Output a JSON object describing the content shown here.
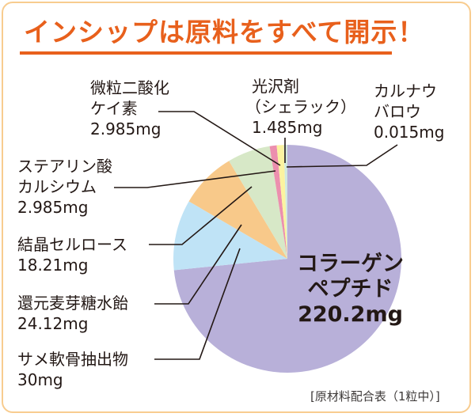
{
  "title": "インシップは原料をすべて開示！",
  "footnote": "[原材料配合表（1粒中）]",
  "chart_data": {
    "type": "pie",
    "title": "インシップは原料をすべて開示！",
    "subtitle": "[原材料配合表（1粒中）]",
    "unit": "mg",
    "start_angle_deg": 0,
    "direction": "clockwise",
    "center": [
      363,
      327
    ],
    "radius": 144,
    "slices": [
      {
        "name": "コラーゲンペプチド",
        "value": 220.2,
        "label": "220.2mg",
        "color": "#b8b0d9"
      },
      {
        "name": "サメ軟骨抽出物",
        "value": 30,
        "label": "30mg",
        "color": "#bfe3f6"
      },
      {
        "name": "還元麦芽糖水飴",
        "value": 24.12,
        "label": "24.12mg",
        "color": "#f8c98a"
      },
      {
        "name": "結晶セルロース",
        "value": 18.21,
        "label": "18.21mg",
        "color": "#d7e8c7"
      },
      {
        "name": "ステアリン酸カルシウム",
        "value": 2.985,
        "label": "2.985mg",
        "color": "#ec8fae"
      },
      {
        "name": "微粒二酸化ケイ素",
        "value": 2.985,
        "label": "2.985mg",
        "color": "#fbf3a0"
      },
      {
        "name": "光沢剤（シェラック）",
        "value": 1.485,
        "label": "1.485mg",
        "color": "#cfe9e0"
      },
      {
        "name": "カルナウバロウ",
        "value": 0.015,
        "label": "0.015mg",
        "color": "#e3b98a"
      }
    ]
  },
  "labels": {
    "silica": {
      "line1": "微粒二酸化",
      "line2": "ケイ素",
      "value": "2.985mg"
    },
    "shellac": {
      "line1": "光沢剤",
      "line2": "（シェラック）",
      "value": "1.485mg"
    },
    "carnauba": {
      "line1": "カルナウ",
      "line2": "バロウ",
      "value": "0.015mg"
    },
    "stearate": {
      "line1": "ステアリン酸",
      "line2": "カルシウム",
      "value": "2.985mg"
    },
    "cellulose": {
      "line1": "結晶セルロース",
      "value": "18.21mg"
    },
    "maltose": {
      "line1": "還元麦芽糖水飴",
      "value": "24.12mg"
    },
    "shark": {
      "line1": "サメ軟骨抽出物",
      "value": "30mg"
    },
    "collagen": {
      "line1": "コラーゲン",
      "line2": "ペプチド",
      "value": "220.2mg"
    }
  },
  "colors": {
    "title": "#e8601c",
    "frame_border": "#f8cc8f",
    "leader_line": "#231815"
  }
}
